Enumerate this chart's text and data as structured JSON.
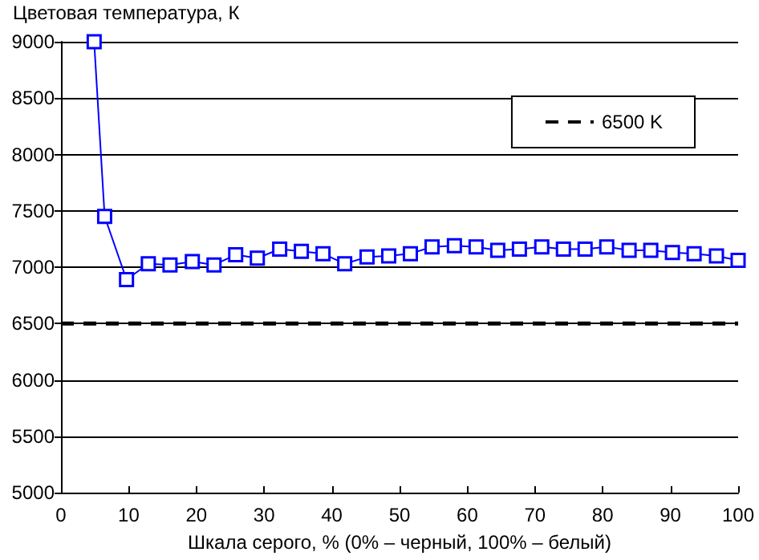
{
  "chart_data": {
    "type": "line",
    "ylabel": "Цветовая температура, К",
    "xlabel": "Шкала серого, % (0% – черный, 100% – белый)",
    "xlim": [
      0,
      100
    ],
    "xticks": [
      0,
      10,
      20,
      30,
      40,
      50,
      60,
      70,
      80,
      90,
      100
    ],
    "ylim": [
      5000,
      9000
    ],
    "yticks": [
      5000,
      5500,
      6000,
      6500,
      7000,
      7500,
      8000,
      8500,
      9000
    ],
    "grid": "y",
    "legend": "top right",
    "marker": "square",
    "line_style": "solid",
    "series": [
      {
        "color": "#0000ff",
        "x": [
          4.9,
          6.45,
          9.68,
          12.9,
          16.1,
          19.4,
          22.6,
          25.8,
          29,
          32.3,
          35.5,
          38.7,
          41.9,
          45.2,
          48.4,
          51.6,
          54.8,
          58.1,
          61.3,
          64.5,
          67.7,
          71,
          74.2,
          77.4,
          80.6,
          83.9,
          87.1,
          90.3,
          93.5,
          96.8,
          100
        ],
        "values": [
          9000,
          7450,
          6890,
          7030,
          7020,
          7050,
          7020,
          7110,
          7080,
          7160,
          7140,
          7120,
          7030,
          7090,
          7100,
          7120,
          7180,
          7190,
          7180,
          7150,
          7160,
          7180,
          7160,
          7160,
          7180,
          7150,
          7150,
          7130,
          7120,
          7100,
          7060
        ]
      }
    ],
    "ref_lines": [
      {
        "axis": "y",
        "value": 6500,
        "label": "6500 K",
        "color": "#000000",
        "line_style": "dashed"
      }
    ]
  }
}
